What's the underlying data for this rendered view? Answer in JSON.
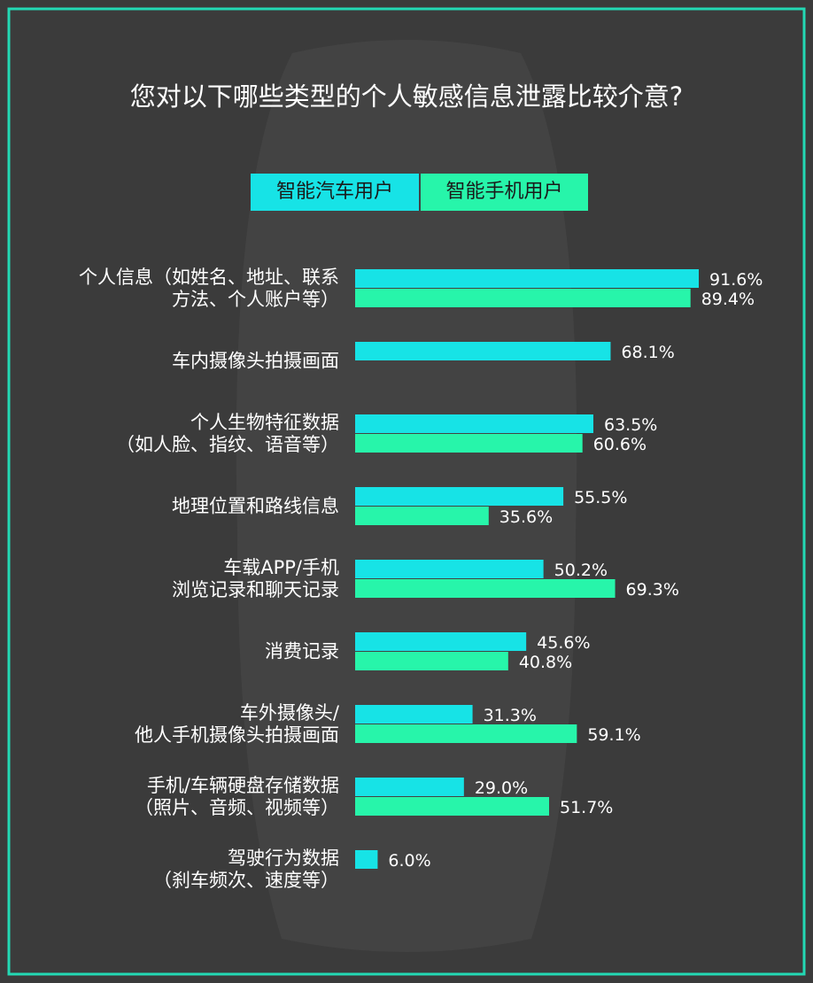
{
  "chart_data": {
    "type": "bar",
    "orientation": "horizontal",
    "title": "您对以下哪些类型的个人敏感信息泄露比较介意?",
    "categories": [
      "个人信息（如姓名、地址、联系\n方法、个人账户等）",
      "车内摄像头拍摄画面",
      "个人生物特征数据\n（如人脸、指纹、语音等）",
      "地理位置和路线信息",
      "车载APP/手机\n浏览记录和聊天记录",
      "消费记录",
      "车外摄像头/\n他人手机摄像头拍摄画面",
      "手机/车辆硬盘存储数据\n（照片、音频、视频等）",
      "驾驶行为数据\n（刹车频次、速度等）"
    ],
    "series": [
      {
        "name": "智能汽车用户",
        "color": "#17e3e6",
        "values": [
          91.6,
          68.1,
          63.5,
          55.5,
          50.2,
          45.6,
          31.3,
          29.0,
          6.0
        ],
        "value_labels": [
          "91.6%",
          "68.1%",
          "63.5%",
          "55.5%",
          "50.2%",
          "45.6%",
          "31.3%",
          "29.0%",
          "6.0%"
        ]
      },
      {
        "name": "智能手机用户",
        "color": "#27f5aa",
        "values": [
          89.4,
          null,
          60.6,
          35.6,
          69.3,
          40.8,
          59.1,
          51.7,
          null
        ],
        "value_labels": [
          "89.4%",
          null,
          "60.6%",
          "35.6%",
          "69.3%",
          "40.8%",
          "59.1%",
          "51.7%",
          null
        ]
      }
    ]
  }
}
